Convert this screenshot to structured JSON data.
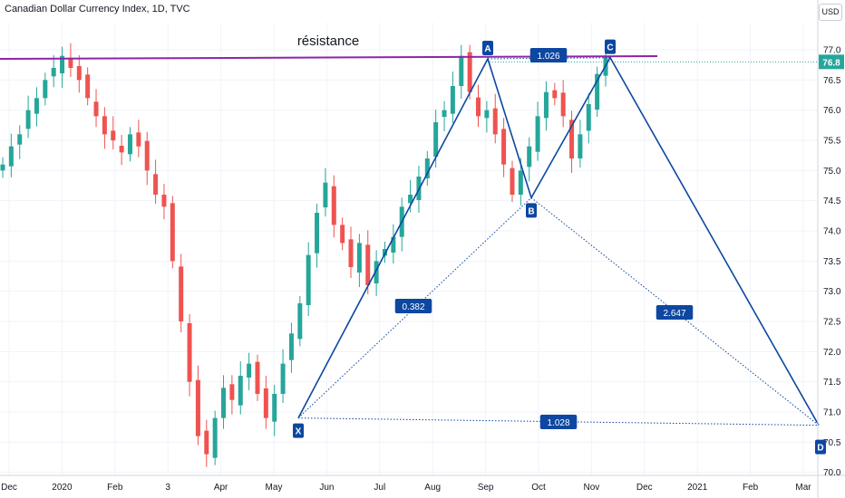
{
  "header": {
    "title": "Canadian Dollar Currency Index, 1D, TVC",
    "currency_button": "USD"
  },
  "price_tag": "76.8",
  "annotations": {
    "resistance": "résistance",
    "ratio_xa_b": "0.382",
    "ratio_top": "1.026",
    "ratio_xd": "1.028",
    "ratio_bd": "2.647"
  },
  "points": [
    "X",
    "A",
    "B",
    "C",
    "D"
  ],
  "colors": {
    "up": "#26a69a",
    "down": "#ef5350",
    "pattern_line": "#0d47a1",
    "label_bg": "#0d47a1",
    "resistance_line": "#8e24aa",
    "price_tag_bg": "#26a69a"
  },
  "chart_data": {
    "type": "candlestick",
    "x_ticks": [
      "Dec",
      "2020",
      "Feb",
      "3",
      "Apr",
      "May",
      "Jun",
      "Jul",
      "Aug",
      "Sep",
      "Oct",
      "Nov",
      "Dec",
      "2021",
      "Feb",
      "Mar"
    ],
    "y_ticks": [
      "70.0",
      "70.5",
      "71.0",
      "71.5",
      "72.0",
      "72.5",
      "73.0",
      "73.5",
      "74.0",
      "74.5",
      "75.0",
      "75.5",
      "76.0",
      "76.5",
      "77.0"
    ],
    "ylim": [
      69.95,
      77.45
    ],
    "last_price": 76.8,
    "resistance_level": 76.85,
    "closes": [
      75.1,
      75.4,
      75.6,
      76.0,
      76.2,
      76.5,
      76.7,
      76.9,
      76.7,
      76.5,
      76.2,
      75.9,
      75.6,
      75.5,
      75.3,
      75.6,
      75.4,
      75.0,
      74.6,
      74.4,
      73.5,
      72.5,
      71.5,
      70.6,
      70.3,
      70.9,
      71.4,
      71.2,
      71.6,
      71.8,
      71.3,
      70.9,
      71.3,
      71.8,
      72.3,
      72.8,
      73.6,
      74.3,
      74.8,
      74.1,
      73.8,
      73.4,
      73.8,
      73.1,
      73.5,
      73.7,
      73.9,
      74.4,
      74.6,
      74.9,
      75.2,
      75.8,
      76.0,
      76.4,
      76.9,
      76.3,
      75.9,
      76.0,
      75.6,
      75.1,
      74.6,
      75.0,
      75.4,
      75.9,
      76.3,
      76.2,
      75.9,
      75.2,
      75.6,
      76.1,
      76.6,
      76.9
    ],
    "pattern": {
      "X": 70.9,
      "A": 76.85,
      "B": 74.55,
      "C": 76.87,
      "D": 70.78
    }
  }
}
